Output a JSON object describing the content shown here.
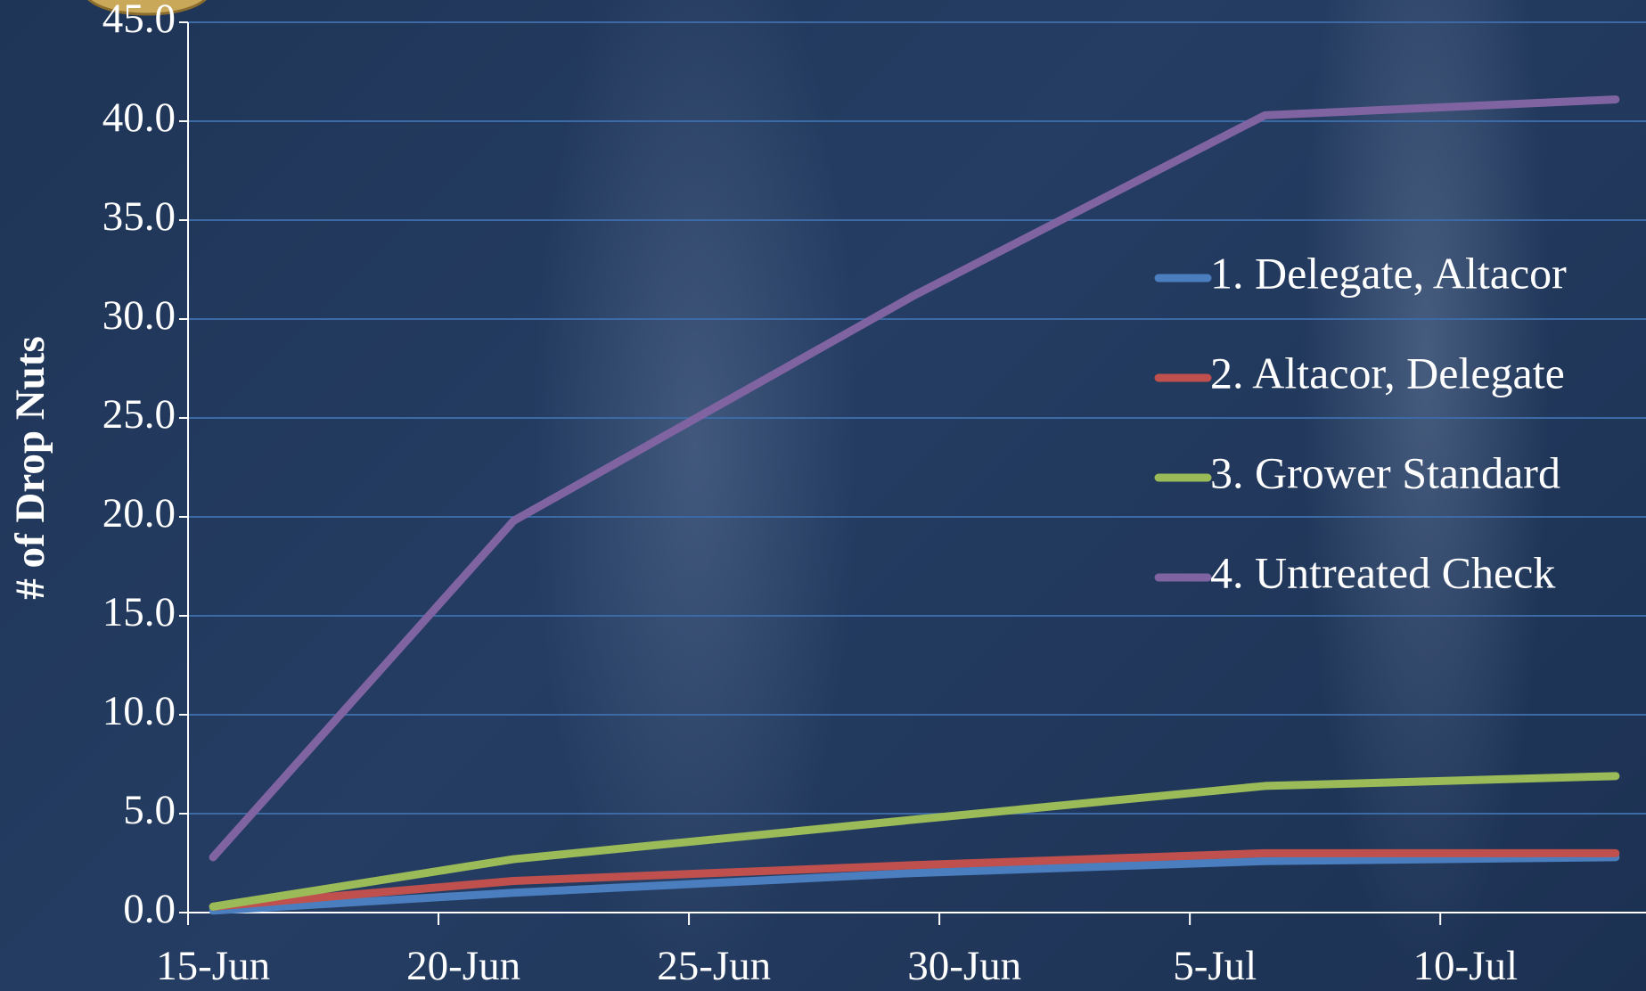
{
  "chart_data": {
    "type": "line",
    "y_label": "# of Drop Nuts",
    "x": [
      "15-Jun",
      "21-Jun",
      "29-Jun",
      "6-Jul",
      "13-Jul"
    ],
    "series": [
      {
        "name": "1. Delegate, Altacor",
        "color": "#4a7ebf",
        "values": [
          0.1,
          1.0,
          2.0,
          2.6,
          2.8
        ]
      },
      {
        "name": "2. Altacor, Delegate",
        "color": "#c0504d",
        "values": [
          0.3,
          1.6,
          2.4,
          3.0,
          3.0
        ]
      },
      {
        "name": "3. Grower Standard",
        "color": "#9bbb59",
        "values": [
          0.3,
          2.7,
          4.7,
          6.4,
          6.9
        ]
      },
      {
        "name": "4. Untreated Check",
        "color": "#8064a2",
        "values": [
          2.8,
          19.8,
          31.2,
          40.3,
          41.1
        ]
      }
    ],
    "xlim": [
      "15-Jun",
      "14-Jul"
    ],
    "xticks": [
      "15-Jun",
      "20-Jun",
      "25-Jun",
      "30-Jun",
      "5-Jul",
      "10-Jul"
    ],
    "ylim": [
      0,
      45
    ],
    "yticks": [
      {
        "value": 0,
        "label": "0.0"
      },
      {
        "value": 5,
        "label": "5.0"
      },
      {
        "value": 10,
        "label": "10.0"
      },
      {
        "value": 15,
        "label": "15.0"
      },
      {
        "value": 20,
        "label": "20.0"
      },
      {
        "value": 25,
        "label": "25.0"
      },
      {
        "value": 30,
        "label": "30.0"
      },
      {
        "value": 35,
        "label": "35.0"
      },
      {
        "value": 40,
        "label": "40.0"
      },
      {
        "value": 45,
        "label": "45.0"
      }
    ],
    "grid": true
  }
}
